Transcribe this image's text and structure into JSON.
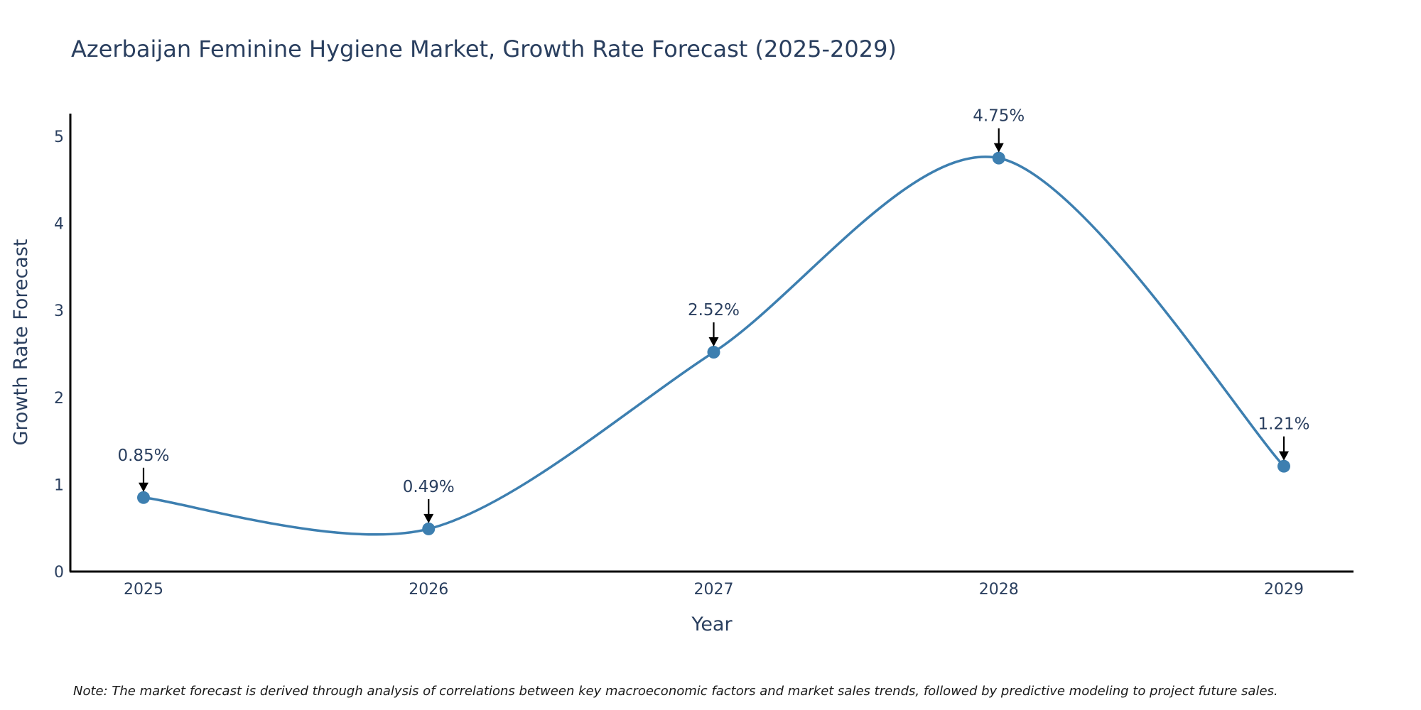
{
  "chart_data": {
    "type": "line",
    "title": "Azerbaijan Feminine Hygiene Market, Growth Rate Forecast (2025-2029)",
    "xlabel": "Year",
    "ylabel": "Growth Rate Forecast",
    "x": [
      "2025",
      "2026",
      "2027",
      "2028",
      "2029"
    ],
    "series": [
      {
        "values": [
          0.85,
          0.49,
          2.52,
          4.75,
          1.21
        ]
      }
    ],
    "annotations": [
      "0.85%",
      "0.49%",
      "2.52%",
      "4.75%",
      "1.21%"
    ],
    "yticks": [
      "0",
      "1",
      "2",
      "3",
      "4",
      "5"
    ],
    "ylim": [
      0,
      5.25
    ],
    "grid": false,
    "line_shape": "spline",
    "colors": {
      "line": "#3d7fb0",
      "marker": "#3d7fb0",
      "arrow": "#000000",
      "axis": "#000000"
    }
  },
  "note": "Note: The market forecast is derived through analysis of correlations between key macroeconomic factors and market sales trends, followed by predictive modeling to project future sales."
}
